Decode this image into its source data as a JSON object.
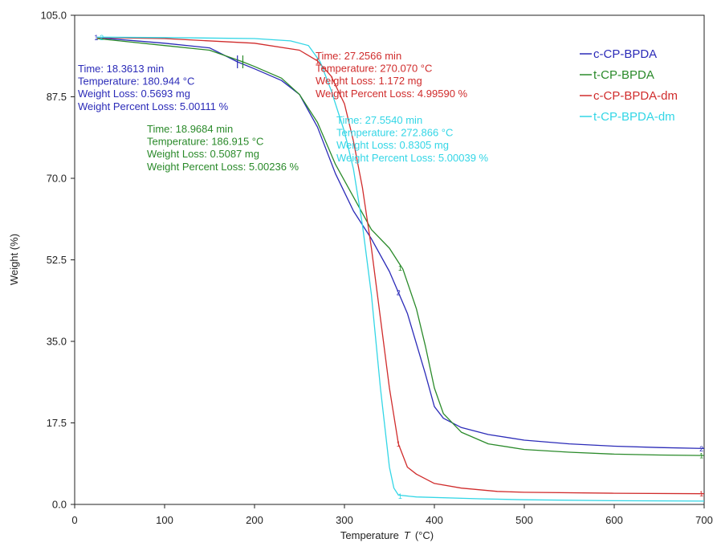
{
  "chart_data": {
    "type": "line",
    "xlabel": "Temperature",
    "xlabel_symbol": "T",
    "xlabel_unit": "(°C)",
    "ylabel": "Weight  (%)",
    "xlim": [
      0,
      700
    ],
    "ylim": [
      0,
      105
    ],
    "x_ticks": [
      "0",
      "100",
      "200",
      "300",
      "400",
      "500",
      "600",
      "700"
    ],
    "y_ticks": [
      "0.0",
      "17.5",
      "35.0",
      "52.5",
      "70.0",
      "87.5",
      "105.0"
    ],
    "grid": false,
    "legend_position": "top-right",
    "colors": {
      "c-CP-BPDA": "#2b2bb8",
      "t-CP-BPDA": "#2a8a2a",
      "c-CP-BPDA-dm": "#d02c2c",
      "t-CP-BPDA-dm": "#33d6e6"
    },
    "series": [
      {
        "name": "c-CP-BPDA",
        "color": "#2b2bb8",
        "x": [
          25,
          50,
          100,
          150,
          181,
          200,
          230,
          250,
          270,
          290,
          310,
          330,
          350,
          370,
          390,
          400,
          410,
          430,
          460,
          500,
          550,
          600,
          650,
          700
        ],
        "y": [
          100.2,
          99.8,
          99.0,
          98.0,
          95.0,
          93.5,
          91.0,
          88.0,
          81.0,
          71.0,
          63.0,
          57.0,
          50.0,
          41.0,
          28.0,
          21.0,
          18.5,
          16.5,
          15.0,
          13.8,
          13.0,
          12.5,
          12.2,
          12.0
        ]
      },
      {
        "name": "t-CP-BPDA",
        "color": "#2a8a2a",
        "x": [
          25,
          50,
          100,
          150,
          187,
          200,
          230,
          250,
          270,
          290,
          310,
          330,
          350,
          365,
          380,
          390,
          400,
          410,
          430,
          460,
          500,
          550,
          600,
          650,
          700
        ],
        "y": [
          100.0,
          99.5,
          98.5,
          97.5,
          95.0,
          94.0,
          91.5,
          88.0,
          82.0,
          73.0,
          66.0,
          59.0,
          55.0,
          50.5,
          42.0,
          34.0,
          25.0,
          19.5,
          15.5,
          13.0,
          11.8,
          11.2,
          10.8,
          10.6,
          10.5
        ]
      },
      {
        "name": "c-CP-BPDA-dm",
        "color": "#d02c2c",
        "x": [
          25,
          100,
          200,
          250,
          270,
          285,
          300,
          310,
          320,
          330,
          340,
          350,
          360,
          370,
          380,
          400,
          430,
          470,
          500,
          600,
          700
        ],
        "y": [
          100.2,
          100.0,
          99.0,
          97.5,
          95.2,
          92.0,
          86.0,
          78.0,
          68.0,
          55.0,
          40.0,
          25.0,
          13.0,
          8.0,
          6.5,
          4.5,
          3.5,
          2.8,
          2.6,
          2.4,
          2.3
        ]
      },
      {
        "name": "t-CP-BPDA-dm",
        "color": "#33d6e6",
        "x": [
          25,
          100,
          200,
          240,
          260,
          273,
          285,
          300,
          310,
          320,
          330,
          340,
          350,
          355,
          360,
          380,
          450,
          500,
          600,
          700
        ],
        "y": [
          100.3,
          100.2,
          100.0,
          99.5,
          98.5,
          95.0,
          89.0,
          80.0,
          72.0,
          60.0,
          45.0,
          25.0,
          8.0,
          3.5,
          2.0,
          1.6,
          1.2,
          1.0,
          0.8,
          0.7
        ]
      }
    ],
    "markers": [
      {
        "series": "c-CP-BPDA",
        "x": 24,
        "y": 100.3,
        "label": "1"
      },
      {
        "series": "c-CP-BPDA",
        "x": 181,
        "y": 95.0,
        "label": "|"
      },
      {
        "series": "c-CP-BPDA",
        "x": 360,
        "y": 45.5,
        "label": "2"
      },
      {
        "series": "c-CP-BPDA",
        "x": 697,
        "y": 12.0,
        "label": "2"
      },
      {
        "series": "t-CP-BPDA",
        "x": 187,
        "y": 95.0,
        "label": "|"
      },
      {
        "series": "t-CP-BPDA",
        "x": 362,
        "y": 50.8,
        "label": "1"
      },
      {
        "series": "t-CP-BPDA",
        "x": 697,
        "y": 10.5,
        "label": "1"
      },
      {
        "series": "c-CP-BPDA-dm",
        "x": 270,
        "y": 95.2,
        "label": "1"
      },
      {
        "series": "c-CP-BPDA-dm",
        "x": 360,
        "y": 13.0,
        "label": "1"
      },
      {
        "series": "c-CP-BPDA-dm",
        "x": 697,
        "y": 2.3,
        "label": "1"
      },
      {
        "series": "t-CP-BPDA-dm",
        "x": 30,
        "y": 100.3,
        "label": "2"
      },
      {
        "series": "t-CP-BPDA-dm",
        "x": 362,
        "y": 1.8,
        "label": "1"
      }
    ],
    "annotations": [
      {
        "series": "c-CP-BPDA",
        "color": "#2b2bb8",
        "lines": [
          "Time: 18.3613 min",
          "Temperature: 180.944 °C",
          "Weight Loss: 0.5693 mg",
          "Weight Percent Loss: 5.00111 %"
        ]
      },
      {
        "series": "t-CP-BPDA",
        "color": "#2a8a2a",
        "lines": [
          "Time: 18.9684 min",
          "Temperature: 186.915 °C",
          "Weight Loss: 0.5087 mg",
          "Weight Percent Loss: 5.00236 %"
        ]
      },
      {
        "series": "c-CP-BPDA-dm",
        "color": "#d02c2c",
        "lines": [
          "Time: 27.2566 min",
          "Temperature: 270.070 °C",
          "Weight Loss: 1.172 mg",
          "Weight Percent Loss: 4.99590 %"
        ]
      },
      {
        "series": "t-CP-BPDA-dm",
        "color": "#33d6e6",
        "lines": [
          "Time: 27.5540 min",
          "Temperature: 272.866 °C",
          "Weight Loss: 0.8305 mg",
          "Weight Percent Loss: 5.00039 %"
        ]
      }
    ]
  }
}
